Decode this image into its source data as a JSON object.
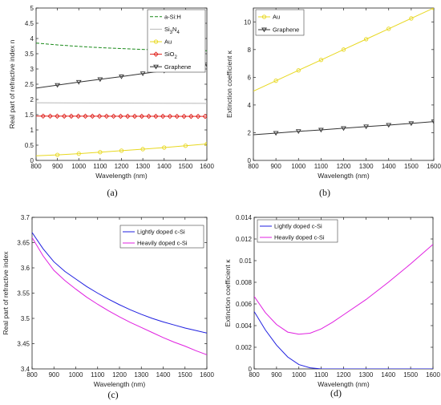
{
  "chart_data": [
    {
      "type": "line",
      "caption": "(a)",
      "xlabel": "Wavelength (nm)",
      "ylabel": "Real part of refractive index n",
      "xlim": [
        800,
        1600
      ],
      "ylim": [
        0,
        5
      ],
      "xticks": [
        800,
        900,
        1000,
        1100,
        1200,
        1300,
        1400,
        1500,
        1600
      ],
      "yticks": [
        0,
        0.5,
        1,
        1.5,
        2,
        2.5,
        3,
        3.5,
        4,
        4.5,
        5
      ],
      "legend_position": "top-right",
      "series": [
        {
          "name": "a-Si:H",
          "legend_name": "a-Si:H",
          "color": "#1a8a1a",
          "dash": "4,2",
          "marker": "none",
          "x": [
            800,
            900,
            1000,
            1100,
            1200,
            1300,
            1400,
            1500,
            1600
          ],
          "y": [
            3.85,
            3.79,
            3.74,
            3.7,
            3.67,
            3.64,
            3.62,
            3.61,
            3.6
          ]
        },
        {
          "name": "Si3N4",
          "legend_name": "Si3N4",
          "color": "#b8b8b8",
          "dash": "",
          "marker": "none",
          "x": [
            800,
            1000,
            1200,
            1400,
            1600
          ],
          "y": [
            1.89,
            1.885,
            1.88,
            1.875,
            1.87
          ]
        },
        {
          "name": "Au",
          "legend_name": "Au",
          "color": "#e8d820",
          "dash": "",
          "marker": "circle",
          "x": [
            800,
            900,
            1000,
            1100,
            1200,
            1300,
            1400,
            1500,
            1600
          ],
          "y": [
            0.15,
            0.18,
            0.22,
            0.27,
            0.32,
            0.37,
            0.42,
            0.48,
            0.54
          ]
        },
        {
          "name": "SiO2",
          "legend_name": "SiO2",
          "color": "#e0231e",
          "dash": "",
          "marker": "diamond",
          "x": [
            800,
            1600
          ],
          "y": [
            1.453,
            1.444
          ]
        },
        {
          "name": "Graphene",
          "legend_name": "Graphene",
          "color": "#333333",
          "dash": "",
          "marker": "triangle",
          "x": [
            800,
            900,
            1000,
            1100,
            1200,
            1300,
            1400,
            1500,
            1600
          ],
          "y": [
            2.37,
            2.47,
            2.57,
            2.66,
            2.75,
            2.85,
            2.94,
            3.04,
            3.14
          ]
        }
      ]
    },
    {
      "type": "line",
      "caption": "(b)",
      "xlabel": "Wavelength (nm)",
      "ylabel": "Extinction coefficient κ",
      "xlim": [
        800,
        1600
      ],
      "ylim": [
        0,
        11
      ],
      "xticks": [
        800,
        900,
        1000,
        1100,
        1200,
        1300,
        1400,
        1500,
        1600
      ],
      "yticks": [
        0,
        2,
        4,
        6,
        8,
        10
      ],
      "legend_position": "top-left",
      "series": [
        {
          "name": "Au",
          "legend_name": "Au",
          "color": "#e8d820",
          "dash": "",
          "marker": "circle",
          "x": [
            800,
            900,
            1000,
            1100,
            1200,
            1300,
            1400,
            1500,
            1600
          ],
          "y": [
            5.0,
            5.75,
            6.5,
            7.25,
            8.0,
            8.75,
            9.5,
            10.25,
            11.0
          ]
        },
        {
          "name": "Graphene",
          "legend_name": "Graphene",
          "color": "#333333",
          "dash": "",
          "marker": "triangle",
          "x": [
            800,
            900,
            1000,
            1100,
            1200,
            1300,
            1400,
            1500,
            1600
          ],
          "y": [
            1.85,
            1.97,
            2.1,
            2.2,
            2.32,
            2.44,
            2.55,
            2.67,
            2.8
          ]
        }
      ]
    },
    {
      "type": "line",
      "caption": "(c)",
      "xlabel": "Wavelength (nm)",
      "ylabel": "Real part of refractive index",
      "xlim": [
        800,
        1600
      ],
      "ylim": [
        3.4,
        3.7
      ],
      "xticks": [
        800,
        900,
        1000,
        1100,
        1200,
        1300,
        1400,
        1500,
        1600
      ],
      "yticks": [
        3.4,
        3.45,
        3.5,
        3.55,
        3.6,
        3.65,
        3.7
      ],
      "legend_position": "top-right",
      "series": [
        {
          "name": "Lightly doped c-Si",
          "legend_name": "Lightly doped c-Si",
          "color": "#1f1fe0",
          "dash": "",
          "marker": "none",
          "x": [
            800,
            850,
            900,
            950,
            1000,
            1050,
            1100,
            1150,
            1200,
            1250,
            1300,
            1350,
            1400,
            1450,
            1500,
            1550,
            1600
          ],
          "y": [
            3.67,
            3.638,
            3.612,
            3.593,
            3.578,
            3.563,
            3.55,
            3.538,
            3.527,
            3.517,
            3.508,
            3.5,
            3.493,
            3.487,
            3.481,
            3.476,
            3.471
          ]
        },
        {
          "name": "Heavily doped c-Si",
          "legend_name": "Heavily doped c-Si",
          "color": "#e020e0",
          "dash": "",
          "marker": "none",
          "x": [
            800,
            850,
            900,
            950,
            1000,
            1050,
            1100,
            1150,
            1200,
            1250,
            1300,
            1350,
            1400,
            1450,
            1500,
            1550,
            1600
          ],
          "y": [
            3.66,
            3.624,
            3.595,
            3.575,
            3.558,
            3.542,
            3.528,
            3.515,
            3.503,
            3.492,
            3.482,
            3.472,
            3.462,
            3.453,
            3.445,
            3.436,
            3.428
          ]
        }
      ]
    },
    {
      "type": "line",
      "caption": "(d)",
      "xlabel": "Wavelength (nm)",
      "ylabel": "Extinction coefficient κ",
      "xlim": [
        800,
        1600
      ],
      "ylim": [
        0,
        0.014
      ],
      "xticks": [
        800,
        900,
        1000,
        1100,
        1200,
        1300,
        1400,
        1500,
        1600
      ],
      "yticks": [
        0,
        0.002,
        0.004,
        0.006,
        0.008,
        0.01,
        0.012,
        0.014
      ],
      "legend_position": "top-left",
      "series": [
        {
          "name": "Lightly doped c-Si",
          "legend_name": "Lightly doped c-Si",
          "color": "#1f1fe0",
          "dash": "",
          "marker": "none",
          "x": [
            800,
            850,
            900,
            950,
            1000,
            1050,
            1100,
            1150,
            1200,
            1300,
            1400,
            1500,
            1600
          ],
          "y": [
            0.0053,
            0.0036,
            0.0022,
            0.0011,
            0.0004,
            0.0001,
            0.0,
            0.0,
            0.0,
            0.0,
            0.0,
            0.0,
            0.0
          ]
        },
        {
          "name": "Heavily doped c-Si",
          "legend_name": "Heavily doped c-Si",
          "color": "#e020e0",
          "dash": "",
          "marker": "none",
          "x": [
            800,
            850,
            900,
            950,
            1000,
            1050,
            1100,
            1150,
            1200,
            1300,
            1400,
            1500,
            1600
          ],
          "y": [
            0.0067,
            0.0052,
            0.0041,
            0.0034,
            0.0032,
            0.0033,
            0.0037,
            0.0043,
            0.005,
            0.0064,
            0.008,
            0.0097,
            0.0115
          ]
        }
      ]
    }
  ]
}
